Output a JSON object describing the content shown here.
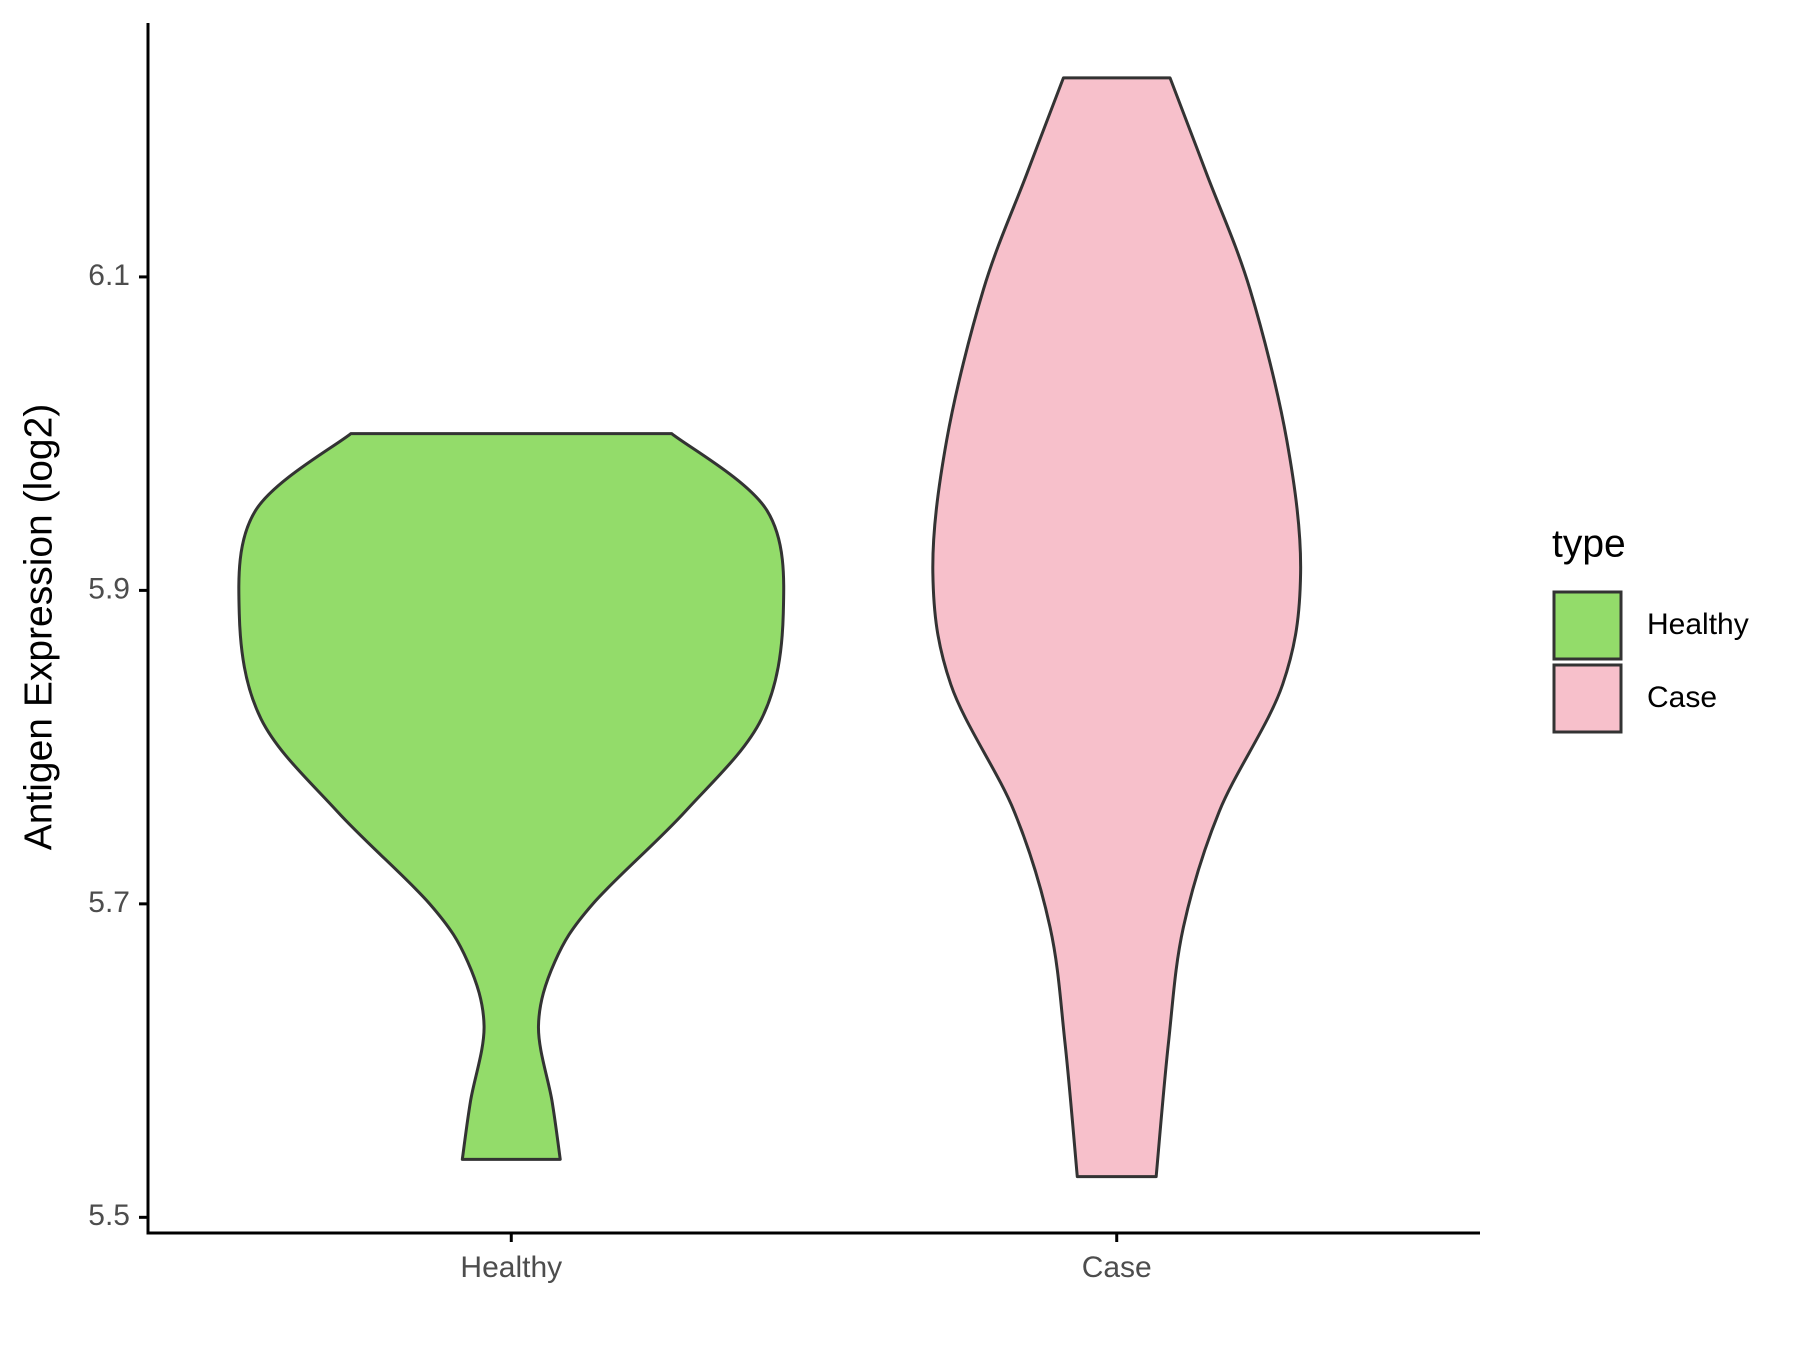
{
  "chart_data": {
    "type": "violin",
    "y_label": "Antigen Expression (log2)",
    "categories": [
      "Healthy",
      "Case"
    ],
    "ylim": [
      5.49,
      6.262
    ],
    "yticks": [
      5.5,
      5.7,
      5.9,
      6.1
    ],
    "legend_title": "type",
    "legend": "right",
    "series": [
      {
        "name": "Healthy",
        "color": "#93dc6a",
        "y": [
          6.0,
          5.951,
          5.885,
          5.818,
          5.759,
          5.7,
          5.663,
          5.622,
          5.574,
          5.537
        ],
        "width": [
          0.59,
          0.94,
          1.0,
          0.92,
          0.64,
          0.3,
          0.16,
          0.1,
          0.15,
          0.18
        ]
      },
      {
        "name": "Case",
        "color": "#f7c0cb",
        "y": [
          6.227,
          6.166,
          6.092,
          5.996,
          5.911,
          5.84,
          5.759,
          5.685,
          5.611,
          5.526
        ],
        "width": [
          0.196,
          0.33,
          0.49,
          0.625,
          0.676,
          0.61,
          0.377,
          0.245,
          0.19,
          0.145
        ]
      }
    ]
  }
}
